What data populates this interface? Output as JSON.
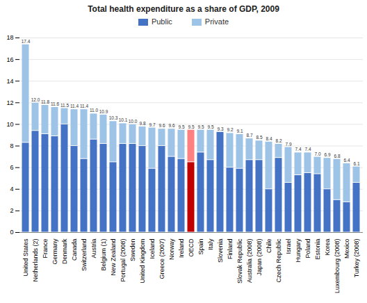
{
  "chart_data": {
    "type": "bar",
    "title": "Total health expenditure as a share of GDP, 2009",
    "categories": [
      "United States",
      "Netherlands (2)",
      "France",
      "Germany",
      "Denmark",
      "Canada",
      "Switzerland",
      "Austria",
      "Belgium (1)",
      "New Zealand",
      "Portugal (2008)",
      "Sweden",
      "United Kingdom",
      "Iceland",
      "Greece (2007)",
      "Norway",
      "Ireland",
      "OECD",
      "Spain",
      "Italy",
      "Slovenia",
      "Finland",
      "Slovak Republic",
      "Australia (2008)",
      "Japan (2008)",
      "Chile",
      "Czech Republic",
      "Israel",
      "Hungary",
      "Poland",
      "Estonia",
      "Korea",
      "Luxembourg (2008)",
      "Mexico",
      "Turkey (2008)"
    ],
    "series": [
      {
        "name": "Public",
        "color": "#4472C4",
        "colors": [
          "#4472C4",
          "#4472C4",
          "#4472C4",
          "#4472C4",
          "#4472C4",
          "#4472C4",
          "#4472C4",
          "#4472C4",
          "#4472C4",
          "#4472C4",
          "#4472C4",
          "#4472C4",
          "#4472C4",
          "#4472C4",
          "#4472C4",
          "#4472C4",
          "#4472C4",
          "#C00000",
          "#4472C4",
          "#4472C4",
          "#4472C4",
          "#4472C4",
          "#4472C4",
          "#4472C4",
          "#4472C4",
          "#4472C4",
          "#4472C4",
          "#4472C4",
          "#4472C4",
          "#4472C4",
          "#4472C4",
          "#4472C4",
          "#4472C4",
          "#4472C4",
          "#4472C4"
        ],
        "values": [
          8.3,
          9.4,
          9.1,
          8.9,
          10.0,
          8.0,
          6.8,
          8.6,
          8.2,
          6.5,
          8.2,
          8.2,
          8.0,
          5.9,
          8.0,
          7.0,
          6.8,
          6.5,
          7.4,
          6.7,
          9.3,
          6.0,
          5.9,
          6.7,
          6.7,
          4.0,
          6.9,
          4.6,
          5.3,
          5.5,
          5.4,
          4.0,
          3.0,
          2.8,
          4.6
        ]
      },
      {
        "name": "Private",
        "color": "#9DC3E6",
        "colors": [
          "#9DC3E6",
          "#9DC3E6",
          "#9DC3E6",
          "#9DC3E6",
          "#9DC3E6",
          "#9DC3E6",
          "#9DC3E6",
          "#9DC3E6",
          "#9DC3E6",
          "#9DC3E6",
          "#9DC3E6",
          "#9DC3E6",
          "#9DC3E6",
          "#9DC3E6",
          "#9DC3E6",
          "#9DC3E6",
          "#9DC3E6",
          "#FF8080",
          "#9DC3E6",
          "#9DC3E6",
          "#9DC3E6",
          "#9DC3E6",
          "#9DC3E6",
          "#9DC3E6",
          "#9DC3E6",
          "#9DC3E6",
          "#9DC3E6",
          "#9DC3E6",
          "#9DC3E6",
          "#9DC3E6",
          "#9DC3E6",
          "#9DC3E6",
          "#9DC3E6",
          "#9DC3E6",
          "#9DC3E6"
        ],
        "values": [
          9.1,
          2.6,
          2.7,
          2.7,
          1.5,
          3.4,
          4.6,
          2.4,
          2.7,
          3.8,
          1.9,
          1.8,
          1.8,
          3.8,
          1.6,
          2.6,
          2.7,
          3.0,
          2.1,
          2.8,
          0.0,
          3.2,
          3.2,
          2.0,
          1.8,
          4.4,
          1.3,
          3.3,
          2.1,
          1.9,
          1.6,
          2.9,
          3.8,
          3.6,
          1.5
        ]
      }
    ],
    "totals": [
      17.4,
      12.0,
      11.8,
      11.6,
      11.5,
      11.4,
      11.4,
      11.0,
      10.9,
      10.3,
      10.1,
      10.0,
      9.8,
      9.7,
      9.6,
      9.6,
      9.5,
      9.5,
      9.5,
      9.5,
      9.3,
      9.2,
      9.1,
      8.7,
      8.5,
      8.4,
      8.2,
      7.9,
      7.4,
      7.4,
      7.0,
      6.9,
      6.8,
      6.4,
      6.1
    ],
    "total_labels": [
      "17.4",
      "12.0",
      "11.8",
      "11.6",
      "11.5",
      "11.4",
      "11.4",
      "11.0",
      "10.9",
      "10.3",
      "10.1",
      "10.0",
      "9.8",
      "9.7",
      "9.6",
      "9.6",
      "9.5",
      "9.5",
      "9.5",
      "9.5",
      "9.3",
      "9.2",
      "9.1",
      "8.7",
      "8.5",
      "8.4",
      "8.2",
      "7.9",
      "7.4",
      "7.4",
      "7.0",
      "6.9",
      "6.8",
      "6.4",
      "6.1"
    ],
    "stacked": true,
    "data_labels": true,
    "ylim": [
      0,
      18
    ],
    "yticks": [
      0,
      2,
      4,
      6,
      8,
      10,
      12,
      14,
      16,
      18
    ],
    "grid": true,
    "legend": "top"
  }
}
